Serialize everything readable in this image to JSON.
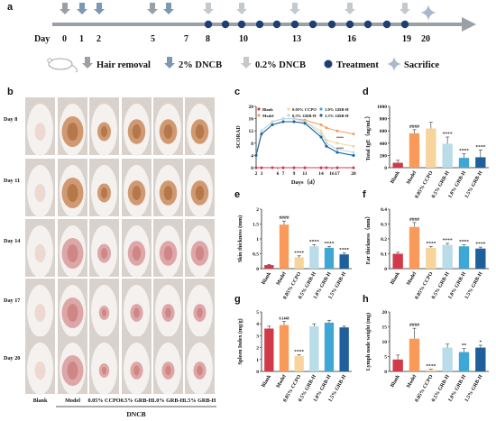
{
  "panel_labels": [
    "a",
    "b",
    "c",
    "d",
    "e",
    "f",
    "g",
    "h"
  ],
  "timeline": {
    "day_word": "Day",
    "days": [
      "0",
      "1",
      "2",
      "5",
      "7",
      "8",
      "10",
      "13",
      "16",
      "19",
      "20"
    ],
    "legend": {
      "hair_removal": "Hair removal",
      "dncb_2": "2% DNCB",
      "dncb_02": "0.2% DNCB",
      "treatment": "Treatment",
      "sacrifice": "Sacrifice"
    }
  },
  "photo_grid": {
    "rows": [
      "Day 8",
      "Day 11",
      "Day 14",
      "Day 17",
      "Day 20"
    ],
    "columns": [
      "Blank",
      "Model",
      "0.05% CCPO",
      "0.5% GRB-H",
      "1.0% GRB-H",
      "1.5% GRB-H"
    ],
    "group_label": "DNCB"
  },
  "colors": {
    "blank": "#d23a4a",
    "model": "#f99a5a",
    "ccpo": "#f6d49c",
    "grb05": "#b9dce8",
    "grb10": "#3fa7d6",
    "grb15": "#1f5f9b",
    "arrow_gray": "#9aa0a6",
    "arrow_light": "#c4c9ce"
  },
  "chart_data": [
    {
      "panel": "c",
      "type": "line",
      "ylabel": "SCORAD",
      "xlabel": "Days（d）",
      "x": [
        2,
        3,
        5,
        7,
        9,
        11,
        14,
        15,
        17,
        20
      ],
      "ylim": [
        0,
        20
      ],
      "yticks": [
        0,
        4,
        8,
        12,
        16,
        20
      ],
      "xticks": [
        2,
        3,
        6,
        7,
        9,
        11,
        14,
        16,
        17,
        20
      ],
      "series": [
        {
          "name": "Blank",
          "values": [
            0,
            0,
            0,
            0,
            0,
            0,
            0,
            0,
            0,
            0
          ]
        },
        {
          "name": "Model",
          "values": [
            4,
            12,
            15,
            16,
            16,
            15.5,
            14,
            13,
            12,
            11
          ]
        },
        {
          "name": "0.05% CCPO",
          "values": [
            4,
            12,
            15,
            16,
            16,
            15,
            12,
            9,
            8,
            7
          ]
        },
        {
          "name": "0.5% GRB-H",
          "values": [
            4,
            12,
            15,
            16,
            16,
            15,
            11,
            8,
            6,
            5
          ]
        },
        {
          "name": "1.0% GRB-H",
          "values": [
            4,
            11,
            14,
            15,
            15,
            14.5,
            10,
            7,
            5,
            4
          ]
        },
        {
          "name": "1.5% GRB-H",
          "values": [
            4,
            11,
            14,
            15,
            15,
            14.5,
            10,
            7,
            5,
            4
          ]
        }
      ],
      "annotations": [
        "****",
        "****"
      ]
    },
    {
      "panel": "d",
      "type": "bar",
      "ylabel": "Total IgE（ng/mL）",
      "ylim": [
        0,
        1000
      ],
      "yticks": [
        0,
        200,
        400,
        600,
        800,
        1000
      ],
      "categories": [
        "Blank",
        "Model",
        "0.05% CCPO",
        "0.5% GRB-H",
        "1.0% GRB-H",
        "1.5% GRB-H"
      ],
      "values": [
        80,
        560,
        640,
        390,
        160,
        170
      ],
      "errors": [
        40,
        60,
        100,
        110,
        70,
        120
      ],
      "sig": [
        "",
        "####",
        "",
        "****",
        "****",
        "****"
      ]
    },
    {
      "panel": "e",
      "type": "bar",
      "ylabel": "Skin thickness (mm)",
      "ylim": [
        0,
        2.0
      ],
      "yticks": [
        0,
        0.5,
        1.0,
        1.5,
        2.0
      ],
      "categories": [
        "Blank",
        "Model",
        "0.05% CCPO",
        "0.5% GRB-H",
        "1.0% GRB-H",
        "1.5% GRB-H"
      ],
      "values": [
        0.12,
        1.48,
        0.38,
        0.75,
        0.7,
        0.48
      ],
      "errors": [
        0.02,
        0.12,
        0.05,
        0.06,
        0.05,
        0.05
      ],
      "sig": [
        "",
        "####",
        "****",
        "****",
        "****",
        "****"
      ]
    },
    {
      "panel": "f",
      "type": "bar",
      "ylabel": "Ear thickness（mm）",
      "ylim": [
        0,
        0.4
      ],
      "yticks": [
        0,
        0.1,
        0.2,
        0.3,
        0.4
      ],
      "categories": [
        "Blank",
        "Model",
        "0.05% CCPO",
        "0.5% GRB-H",
        "1.0% GRB-H",
        "1.5% GRB-H"
      ],
      "values": [
        0.1,
        0.28,
        0.14,
        0.16,
        0.15,
        0.135
      ],
      "errors": [
        0.01,
        0.03,
        0.01,
        0.01,
        0.01,
        0.01
      ],
      "sig": [
        "",
        "####",
        "****",
        "****",
        "****",
        "****"
      ]
    },
    {
      "panel": "g",
      "type": "bar",
      "ylabel": "Spleen Index (mg/g)",
      "ylim": [
        0,
        5
      ],
      "yticks": [
        0,
        1,
        2,
        3,
        4,
        5
      ],
      "categories": [
        "Blank",
        "Model",
        "0.05% CCPO",
        "0.5% GRB-H",
        "1.0% GRB-H",
        "1.5% GRB-H"
      ],
      "values": [
        3.6,
        3.9,
        1.3,
        3.8,
        4.1,
        3.7
      ],
      "errors": [
        0.2,
        0.3,
        0.1,
        0.2,
        0.2,
        0.1
      ],
      "sig": [
        "",
        "0.1448",
        "****",
        "",
        "",
        ""
      ]
    },
    {
      "panel": "h",
      "type": "bar",
      "ylabel": "Lymph node weight (mg)",
      "ylim": [
        0,
        20
      ],
      "yticks": [
        0,
        5,
        10,
        15,
        20
      ],
      "categories": [
        "Blank",
        "Model",
        "0.05% CCPO",
        "0.5% GRB-H",
        "1.0% GRB-H",
        "1.5% GRB-H"
      ],
      "values": [
        4,
        11,
        0.5,
        8,
        6.5,
        8
      ],
      "errors": [
        1.5,
        3.5,
        0.2,
        1.2,
        1.2,
        0.8
      ],
      "sig": [
        "",
        "####",
        "****",
        "",
        "**",
        "*"
      ]
    }
  ]
}
